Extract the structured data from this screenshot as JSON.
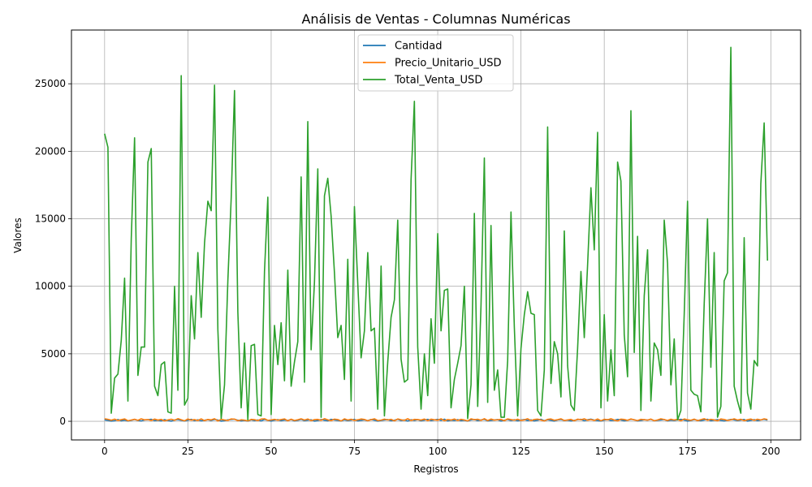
{
  "chart_data": {
    "type": "line",
    "title": "Análisis de Ventas - Columnas Numéricas",
    "xlabel": "Registros",
    "ylabel": "Valores",
    "xlim": [
      -9.95,
      208.95
    ],
    "ylim": [
      -1380,
      28980
    ],
    "xticks": [
      0,
      25,
      50,
      75,
      100,
      125,
      150,
      175,
      200
    ],
    "yticks": [
      0,
      5000,
      10000,
      15000,
      20000,
      25000
    ],
    "grid": true,
    "legend_position": "top-center",
    "series": [
      {
        "name": "Cantidad",
        "color": "#1f77b4",
        "values": [
          110,
          65,
          15,
          40,
          130,
          35,
          90,
          20,
          75,
          140,
          60,
          25,
          100,
          115,
          150,
          45,
          80,
          30,
          120,
          55,
          10,
          95,
          135,
          70,
          20,
          85,
          145,
          50,
          110,
          35,
          75,
          125,
          60,
          140,
          90,
          15,
          45,
          105,
          130,
          155,
          80,
          25,
          65,
          10,
          115,
          50,
          95,
          30,
          140,
          70,
          20,
          85,
          120,
          45,
          100,
          60,
          135,
          25,
          75,
          150,
          40,
          90,
          110,
          15,
          55,
          130,
          80,
          35,
          145,
          100,
          65,
          20,
          120,
          50,
          90,
          140,
          30,
          70,
          110,
          45,
          135,
          85,
          15,
          60,
          100,
          125,
          40,
          75,
          150,
          55,
          95,
          20,
          115,
          65,
          130,
          35,
          85,
          145,
          50,
          105,
          140,
          70,
          155,
          25,
          90,
          60,
          120,
          40,
          80,
          15,
          110,
          135,
          50,
          95,
          145,
          30,
          65,
          100,
          125,
          20,
          75,
          140,
          55,
          115,
          35,
          90,
          130,
          60,
          105,
          25,
          80,
          150,
          45,
          120,
          70,
          15,
          100,
          135,
          55,
          90,
          30,
          65,
          125,
          145,
          40,
          110,
          160,
          85,
          50,
          20,
          95,
          130,
          60,
          75,
          140,
          105,
          35,
          80,
          150,
          115,
          25,
          65,
          120,
          90,
          145,
          45,
          70,
          100,
          135,
          30,
          85,
          55,
          115,
          140,
          95,
          20,
          60,
          130,
          75,
          45,
          105,
          150,
          35,
          90,
          120,
          65,
          25,
          80,
          140,
          110,
          50,
          95,
          135,
          15,
          70,
          125,
          45,
          100,
          145,
          85
        ]
      },
      {
        "name": "Precio_Unitario_USD",
        "color": "#ff7f0e",
        "values": [
          190,
          145,
          80,
          160,
          60,
          120,
          175,
          40,
          95,
          150,
          70,
          185,
          110,
          130,
          55,
          165,
          90,
          140,
          25,
          100,
          155,
          75,
          195,
          115,
          35,
          170,
          85,
          125,
          60,
          180,
          45,
          135,
          105,
          190,
          20,
          150,
          95,
          65,
          175,
          160,
          40,
          110,
          85,
          30,
          140,
          120,
          55,
          165,
          190,
          70,
          100,
          145,
          80,
          130,
          175,
          35,
          155,
          60,
          115,
          185,
          90,
          170,
          45,
          125,
          140,
          75,
          195,
          105,
          50,
          160,
          130,
          25,
          180,
          95,
          150,
          65,
          110,
          170,
          135,
          40,
          120,
          185,
          55,
          85,
          160,
          100,
          145,
          30,
          175,
          115,
          70,
          190,
          60,
          140,
          125,
          90,
          165,
          45,
          155,
          110,
          80,
          185,
          35,
          130,
          95,
          170,
          60,
          145,
          100,
          25,
          180,
          120,
          150,
          70,
          195,
          55,
          165,
          90,
          115,
          140,
          40,
          175,
          125,
          85,
          155,
          65,
          105,
          190,
          50,
          135,
          160,
          95,
          20,
          145,
          170,
          75,
          120,
          185,
          60,
          100,
          140,
          35,
          155,
          115,
          180,
          80,
          130,
          65,
          170,
          45,
          150,
          110,
          190,
          90,
          25,
          160,
          135,
          70,
          175,
          105,
          55,
          145,
          120,
          85,
          165,
          40,
          100,
          185,
          130,
          60,
          155,
          95,
          140,
          30,
          175,
          115,
          75,
          160,
          50,
          125,
          190,
          80,
          145,
          105,
          35,
          170,
          135,
          65,
          110,
          180,
          90,
          150,
          45,
          120,
          165,
          70,
          155,
          100,
          185,
          130
        ]
      },
      {
        "name": "Total_Venta_USD",
        "color": "#2ca02c",
        "values": [
          21300,
          20300,
          600,
          3200,
          3500,
          6000,
          10600,
          1500,
          13500,
          21000,
          3400,
          5500,
          5500,
          19200,
          20200,
          2600,
          1900,
          4200,
          4400,
          700,
          600,
          10000,
          2300,
          25600,
          1200,
          1700,
          9300,
          6100,
          12500,
          7700,
          13200,
          16300,
          15600,
          24900,
          6800,
          200,
          2700,
          10400,
          16500,
          24500,
          8100,
          1000,
          5800,
          100,
          5600,
          5700,
          500,
          400,
          11100,
          16600,
          500,
          7100,
          4200,
          7300,
          3000,
          11200,
          2600,
          4400,
          5900,
          18100,
          2900,
          22200,
          5300,
          10300,
          18700,
          300,
          16700,
          18000,
          15200,
          11000,
          6200,
          7100,
          3100,
          12000,
          1500,
          15900,
          10200,
          4700,
          6700,
          12500,
          6700,
          6900,
          900,
          11500,
          400,
          4400,
          7700,
          9000,
          14900,
          4600,
          2900,
          3100,
          17900,
          23700,
          5500,
          900,
          5000,
          1900,
          7600,
          4300,
          13900,
          6700,
          9700,
          9800,
          1000,
          3100,
          4300,
          5600,
          10000,
          200,
          2700,
          15400,
          1100,
          8600,
          19500,
          1400,
          14500,
          2300,
          3800,
          300,
          300,
          4500,
          15500,
          7000,
          400,
          5400,
          7900,
          9600,
          8000,
          7900,
          800,
          400,
          3800,
          21800,
          2800,
          5900,
          5000,
          1800,
          14100,
          4100,
          1200,
          800,
          5400,
          11100,
          6200,
          11600,
          17300,
          12700,
          21400,
          1000,
          7900,
          1500,
          5300,
          1900,
          19200,
          17800,
          6400,
          3300,
          23000,
          5100,
          13700,
          800,
          9300,
          12700,
          1500,
          5800,
          5300,
          3400,
          14900,
          11700,
          2700,
          6100,
          100,
          800,
          7900,
          16300,
          2300,
          2000,
          1900,
          700,
          8700,
          15000,
          4000,
          12500,
          300,
          1100,
          10400,
          11000,
          27700,
          2600,
          1500,
          600,
          13600,
          2100,
          900,
          4500,
          4100,
          17600,
          22100,
          11900
        ]
      }
    ]
  }
}
